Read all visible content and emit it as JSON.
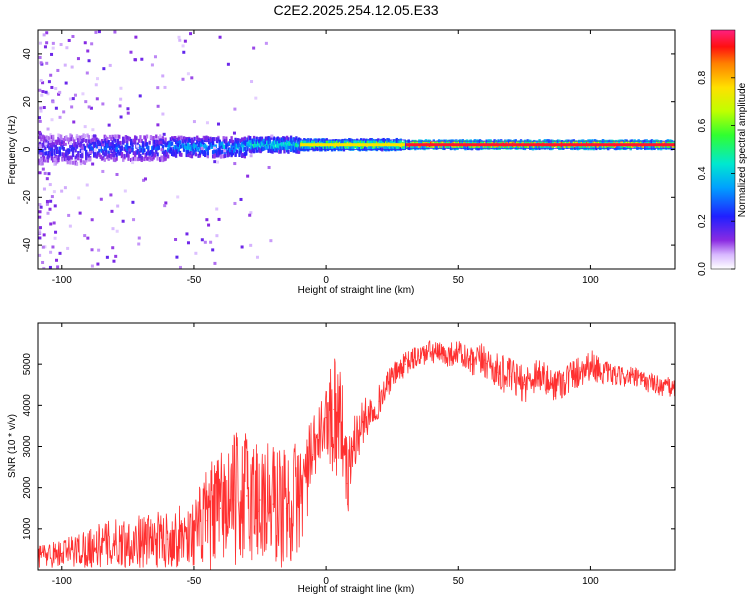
{
  "title": "C2E2.2025.254.12.05.E33",
  "colorbar": {
    "label": "Normalized spectral amplitude",
    "ticks": [
      0.0,
      0.2,
      0.4,
      0.6,
      0.8
    ],
    "tick_labels": [
      "0.0",
      "0.2",
      "0.4",
      "0.6",
      "0.8"
    ],
    "range": [
      0,
      1
    ]
  },
  "chart_data": [
    {
      "type": "heatmap",
      "xlabel": "Height of straight line (km)",
      "ylabel": "Frequency (Hz)",
      "xlim": [
        -109,
        132
      ],
      "ylim": [
        -50,
        50
      ],
      "xticks": [
        -100,
        -50,
        0,
        50,
        100
      ],
      "xtick_labels": [
        "-100",
        "-50",
        "0",
        "50",
        "100"
      ],
      "yticks": [
        -40,
        -20,
        0,
        20,
        40
      ],
      "ytick_labels": [
        "-40",
        "-20",
        "0",
        "20",
        "40"
      ],
      "colorscale": "rainbow",
      "bands": [
        {
          "x_from": -109,
          "x_to": -90,
          "freq_center": 0,
          "freq_halfwidth": 6,
          "amplitude": 0.25
        },
        {
          "x_from": -90,
          "x_to": -60,
          "freq_center": 0.5,
          "freq_halfwidth": 5,
          "amplitude": 0.3
        },
        {
          "x_from": -60,
          "x_to": -30,
          "freq_center": 1,
          "freq_halfwidth": 4,
          "amplitude": 0.4
        },
        {
          "x_from": -30,
          "x_to": -10,
          "freq_center": 2,
          "freq_halfwidth": 3,
          "amplitude": 0.5
        },
        {
          "x_from": -10,
          "x_to": 30,
          "freq_center": 2,
          "freq_halfwidth": 2,
          "amplitude": 0.75
        },
        {
          "x_from": 30,
          "x_to": 132,
          "freq_center": 2,
          "freq_halfwidth": 1.5,
          "amplitude": 0.95
        }
      ]
    },
    {
      "type": "line",
      "xlabel": "Height of straight line (km)",
      "ylabel": "SNR (10 * v/v)",
      "xlim": [
        -109,
        132
      ],
      "ylim": [
        0,
        6000
      ],
      "xticks": [
        -100,
        -50,
        0,
        50,
        100
      ],
      "xtick_labels": [
        "-100",
        "-50",
        "0",
        "50",
        "100"
      ],
      "yticks": [
        1000,
        2000,
        3000,
        4000,
        5000
      ],
      "ytick_labels": [
        "1000",
        "2000",
        "3000",
        "4000",
        "5000"
      ],
      "series": [
        {
          "color": "#ff3030",
          "x": [
            -109,
            -100,
            -90,
            -80,
            -70,
            -60,
            -50,
            -45,
            -40,
            -35,
            -30,
            -25,
            -20,
            -15,
            -10,
            -5,
            0,
            3,
            6,
            8,
            10,
            15,
            20,
            25,
            30,
            35,
            40,
            45,
            50,
            55,
            60,
            65,
            70,
            75,
            80,
            85,
            90,
            95,
            100,
            105,
            110,
            115,
            120,
            125,
            132
          ],
          "y": [
            350,
            400,
            550,
            650,
            700,
            750,
            900,
            1200,
            1500,
            1700,
            1800,
            1700,
            1600,
            1500,
            1800,
            2800,
            3700,
            3900,
            3600,
            2100,
            3000,
            3700,
            4100,
            4700,
            5000,
            5200,
            5300,
            5200,
            5300,
            5000,
            5100,
            4800,
            4700,
            4500,
            4800,
            4500,
            4600,
            4800,
            5000,
            4800,
            4700,
            4700,
            4600,
            4500,
            4400
          ],
          "jitter": [
            300,
            350,
            500,
            600,
            650,
            700,
            800,
            1300,
            1400,
            1600,
            1700,
            1700,
            1600,
            1500,
            1400,
            900,
            700,
            1800,
            1200,
            900,
            800,
            500,
            400,
            300,
            300,
            300,
            300,
            300,
            300,
            400,
            450,
            450,
            450,
            450,
            450,
            400,
            450,
            400,
            400,
            300,
            250,
            250,
            250,
            250,
            250
          ]
        }
      ]
    }
  ]
}
